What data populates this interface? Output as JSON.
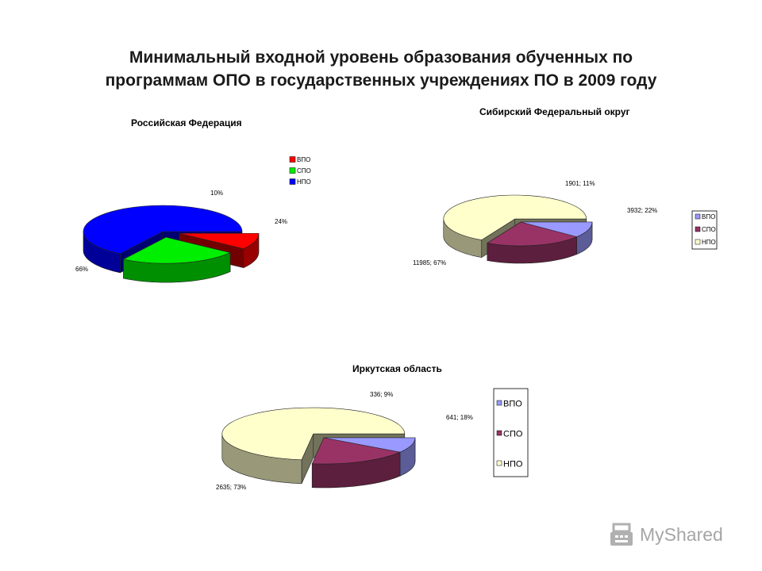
{
  "page": {
    "title_line1": "Минимальный входной уровень образования обученных по",
    "title_line2": "программам ОПО в государственных учреждениях ПО в 2009 году"
  },
  "watermark": {
    "text": "MyShared",
    "icon": "cash-register-icon"
  },
  "chart_data": [
    {
      "id": "rf",
      "type": "pie",
      "title": "Российская Федерация",
      "categories": [
        "ВПО",
        "СПО",
        "НПО"
      ],
      "values": [
        10,
        24,
        66
      ],
      "labels": [
        "10%",
        "24%",
        "66%"
      ],
      "colors": [
        "#ff0000",
        "#00ee00",
        "#0000ff"
      ],
      "legend_position": "top-right",
      "exploded": [
        "ВПО",
        "СПО"
      ]
    },
    {
      "id": "sfo",
      "type": "pie",
      "title": "Сибирский Федеральный округ",
      "categories": [
        "ВПО",
        "СПО",
        "НПО"
      ],
      "values": [
        1901,
        3932,
        11985
      ],
      "labels": [
        "1901; 11%",
        "3932; 22%",
        "11985; 67%"
      ],
      "colors": [
        "#9999ff",
        "#993366",
        "#ffffcc"
      ],
      "legend_position": "right",
      "exploded": [
        "НПО"
      ]
    },
    {
      "id": "irk",
      "type": "pie",
      "title": "Иркутская область",
      "categories": [
        "ВПО",
        "СПО",
        "НПО"
      ],
      "values": [
        336,
        641,
        2635
      ],
      "labels": [
        "336; 9%",
        "641; 18%",
        "2635; 73%"
      ],
      "colors": [
        "#9999ff",
        "#993366",
        "#ffffcc"
      ],
      "legend_position": "right",
      "exploded": [
        "НПО"
      ]
    }
  ]
}
